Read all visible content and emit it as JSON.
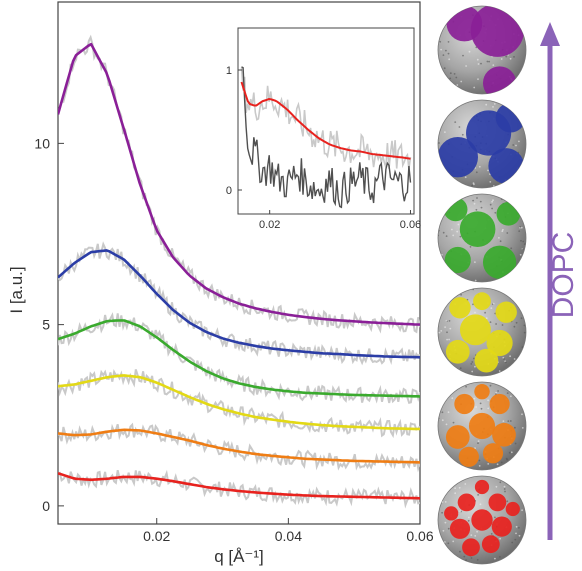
{
  "chart_data": {
    "type": "line",
    "xlabel": "q [Å⁻¹]",
    "ylabel": "I [a.u.]",
    "xlim": [
      0.005,
      0.06
    ],
    "ylim": [
      -0.5,
      13.9
    ],
    "xticks": [
      0.02,
      0.04,
      0.06
    ],
    "xtick_labels": [
      "0.02",
      "0.04",
      "0.06"
    ],
    "yticks": [
      0,
      5,
      10
    ],
    "ytick_labels": [
      "0",
      "5",
      "10"
    ],
    "grid": false,
    "legend": "none",
    "x": [
      0.005,
      0.0075,
      0.01,
      0.0125,
      0.015,
      0.0175,
      0.02,
      0.0225,
      0.025,
      0.0275,
      0.03,
      0.0325,
      0.035,
      0.0375,
      0.04,
      0.0425,
      0.045,
      0.0475,
      0.05,
      0.0525,
      0.055,
      0.0575,
      0.06
    ],
    "series": [
      {
        "color": "#e8221e",
        "values": [
          0.9,
          0.75,
          0.72,
          0.75,
          0.8,
          0.8,
          0.75,
          0.68,
          0.6,
          0.52,
          0.46,
          0.41,
          0.37,
          0.34,
          0.31,
          0.29,
          0.27,
          0.26,
          0.25,
          0.24,
          0.23,
          0.22,
          0.21
        ]
      },
      {
        "color": "#ef7d14",
        "values": [
          2.0,
          1.95,
          1.97,
          2.05,
          2.1,
          2.08,
          2.0,
          1.9,
          1.8,
          1.68,
          1.58,
          1.5,
          1.43,
          1.38,
          1.34,
          1.3,
          1.28,
          1.26,
          1.24,
          1.23,
          1.22,
          1.21,
          1.2
        ]
      },
      {
        "color": "#e3d916",
        "values": [
          3.3,
          3.35,
          3.45,
          3.55,
          3.6,
          3.55,
          3.4,
          3.2,
          3.0,
          2.82,
          2.67,
          2.55,
          2.45,
          2.38,
          2.32,
          2.27,
          2.23,
          2.2,
          2.18,
          2.16,
          2.14,
          2.13,
          2.12
        ]
      },
      {
        "color": "#3aaa2e",
        "values": [
          4.6,
          4.75,
          4.95,
          5.1,
          5.12,
          4.95,
          4.65,
          4.3,
          3.98,
          3.72,
          3.52,
          3.38,
          3.28,
          3.21,
          3.16,
          3.12,
          3.1,
          3.08,
          3.06,
          3.05,
          3.04,
          3.03,
          3.02
        ]
      },
      {
        "color": "#2b3da6",
        "values": [
          6.3,
          6.7,
          7.0,
          7.05,
          6.8,
          6.35,
          5.85,
          5.4,
          5.05,
          4.8,
          4.62,
          4.5,
          4.41,
          4.34,
          4.29,
          4.25,
          4.21,
          4.19,
          4.16,
          4.14,
          4.12,
          4.11,
          4.1
        ]
      },
      {
        "color": "#8a1f97",
        "values": [
          10.8,
          12.4,
          12.75,
          11.9,
          10.4,
          8.85,
          7.6,
          6.85,
          6.35,
          6.0,
          5.76,
          5.58,
          5.45,
          5.35,
          5.27,
          5.21,
          5.16,
          5.12,
          5.09,
          5.06,
          5.04,
          5.02,
          5.0
        ]
      }
    ],
    "inset": {
      "type": "line",
      "xlim": [
        0.011,
        0.061
      ],
      "ylim": [
        -0.2,
        1.35
      ],
      "xticks": [
        0.02,
        0.06
      ],
      "xtick_labels": [
        "0.02",
        "0.06"
      ],
      "yticks": [
        0,
        1
      ],
      "ytick_labels": [
        "0",
        "1"
      ],
      "x": [
        0.012,
        0.014,
        0.016,
        0.018,
        0.02,
        0.022,
        0.025,
        0.028,
        0.031,
        0.034,
        0.037,
        0.04,
        0.043,
        0.046,
        0.049,
        0.052,
        0.055,
        0.058,
        0.06
      ],
      "series": [
        {
          "color": "#e8221e",
          "values": [
            0.9,
            0.72,
            0.7,
            0.74,
            0.76,
            0.74,
            0.67,
            0.58,
            0.5,
            0.43,
            0.38,
            0.35,
            0.33,
            0.32,
            0.3,
            0.29,
            0.28,
            0.27,
            0.26
          ]
        },
        {
          "color": "#505050",
          "values": [
            1.15,
            0.35,
            0.3,
            0.15,
            0.2,
            0.1,
            0.05,
            0.15,
            0.05,
            0.0,
            0.08,
            -0.02,
            0.05,
            0.1,
            0.0,
            0.12,
            0.08,
            0.05,
            0.1
          ]
        }
      ]
    }
  },
  "side_panel": {
    "label": "DOPC",
    "arrow_color": "#8b63b8",
    "label_color": "#8b63b8",
    "spheres": [
      {
        "name": "purple",
        "color": "#8a1f97"
      },
      {
        "name": "blue",
        "color": "#2b3da6"
      },
      {
        "name": "green",
        "color": "#3aaa2e"
      },
      {
        "name": "yellow",
        "color": "#e3d916"
      },
      {
        "name": "orange",
        "color": "#ef7d14"
      },
      {
        "name": "red",
        "color": "#e8221e"
      }
    ]
  }
}
